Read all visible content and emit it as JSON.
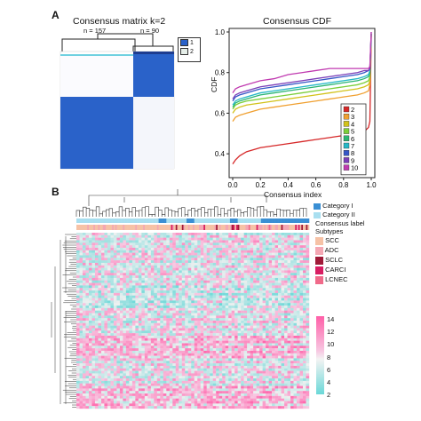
{
  "panel_a": {
    "letter": "A",
    "matrix_title": "Consensus matrix k=2",
    "n_left": "n = 157",
    "n_right": "n = 90",
    "matrix_legend": [
      {
        "label": "1",
        "color": "#2a62c9"
      },
      {
        "label": "2",
        "color": "#e6efe9"
      }
    ]
  },
  "chart_data": {
    "type": "line",
    "title": "Consensus CDF",
    "xlabel": "Consensus index",
    "ylabel": "CDF",
    "xlim": [
      0,
      1
    ],
    "ylim": [
      0.3,
      1.0
    ],
    "x_ticks": [
      "0.0",
      "0.2",
      "0.4",
      "0.6",
      "0.8",
      "1.0"
    ],
    "y_ticks": [
      "0.4",
      "0.6",
      "0.8",
      "1.0"
    ],
    "legend_position": "bottom-right",
    "x": [
      0.0,
      0.02,
      0.05,
      0.1,
      0.2,
      0.3,
      0.4,
      0.5,
      0.6,
      0.7,
      0.8,
      0.9,
      0.95,
      0.98,
      0.99,
      1.0
    ],
    "series": [
      {
        "name": "2",
        "color": "#d62728",
        "values": [
          0.35,
          0.37,
          0.39,
          0.41,
          0.43,
          0.44,
          0.45,
          0.46,
          0.47,
          0.48,
          0.49,
          0.5,
          0.51,
          0.53,
          0.56,
          0.98
        ]
      },
      {
        "name": "3",
        "color": "#f0a030",
        "values": [
          0.56,
          0.58,
          0.59,
          0.6,
          0.62,
          0.63,
          0.64,
          0.65,
          0.66,
          0.67,
          0.68,
          0.69,
          0.7,
          0.71,
          0.74,
          0.99
        ]
      },
      {
        "name": "4",
        "color": "#d2c21a",
        "values": [
          0.6,
          0.62,
          0.63,
          0.64,
          0.65,
          0.66,
          0.67,
          0.68,
          0.69,
          0.7,
          0.71,
          0.72,
          0.73,
          0.74,
          0.76,
          0.99
        ]
      },
      {
        "name": "5",
        "color": "#7bcf3a",
        "values": [
          0.62,
          0.64,
          0.65,
          0.66,
          0.67,
          0.68,
          0.69,
          0.7,
          0.71,
          0.72,
          0.73,
          0.74,
          0.75,
          0.76,
          0.78,
          0.99
        ]
      },
      {
        "name": "6",
        "color": "#2bb673",
        "values": [
          0.63,
          0.65,
          0.66,
          0.67,
          0.69,
          0.7,
          0.71,
          0.72,
          0.73,
          0.74,
          0.75,
          0.76,
          0.77,
          0.78,
          0.8,
          0.99
        ]
      },
      {
        "name": "7",
        "color": "#25b8c7",
        "values": [
          0.64,
          0.66,
          0.67,
          0.68,
          0.7,
          0.71,
          0.72,
          0.73,
          0.74,
          0.75,
          0.76,
          0.77,
          0.78,
          0.79,
          0.81,
          0.99
        ]
      },
      {
        "name": "8",
        "color": "#3557c7",
        "values": [
          0.66,
          0.68,
          0.69,
          0.7,
          0.72,
          0.73,
          0.74,
          0.75,
          0.76,
          0.77,
          0.78,
          0.79,
          0.8,
          0.81,
          0.82,
          0.99
        ]
      },
      {
        "name": "9",
        "color": "#7b3fb8",
        "values": [
          0.67,
          0.69,
          0.7,
          0.71,
          0.73,
          0.74,
          0.75,
          0.76,
          0.77,
          0.78,
          0.79,
          0.8,
          0.81,
          0.81,
          0.82,
          1.0
        ]
      },
      {
        "name": "10",
        "color": "#c03ab0",
        "values": [
          0.7,
          0.72,
          0.73,
          0.74,
          0.76,
          0.77,
          0.79,
          0.8,
          0.81,
          0.82,
          0.82,
          0.82,
          0.82,
          0.82,
          0.83,
          1.0
        ]
      }
    ]
  },
  "panel_b": {
    "letter": "B",
    "category_legend": [
      {
        "label": "Category I",
        "color": "#3a8fd4"
      },
      {
        "label": "Category II",
        "color": "#a9dff0"
      }
    ],
    "track_labels": [
      "Consensus label",
      "Subtypes"
    ],
    "subtype_legend": [
      {
        "label": "SCC",
        "color": "#f6c2a6"
      },
      {
        "label": "ADC",
        "color": "#f4a7b3"
      },
      {
        "label": "SCLC",
        "color": "#a01a38"
      },
      {
        "label": "CARCI",
        "color": "#d81e62"
      },
      {
        "label": "LCNEC",
        "color": "#f06a8a"
      }
    ],
    "colorbar_ticks": [
      "14",
      "12",
      "10",
      "8",
      "6",
      "4",
      "2"
    ],
    "colorbar_colors": [
      "#ff5fa8",
      "#f7c9e2",
      "#6ad8d8"
    ]
  }
}
